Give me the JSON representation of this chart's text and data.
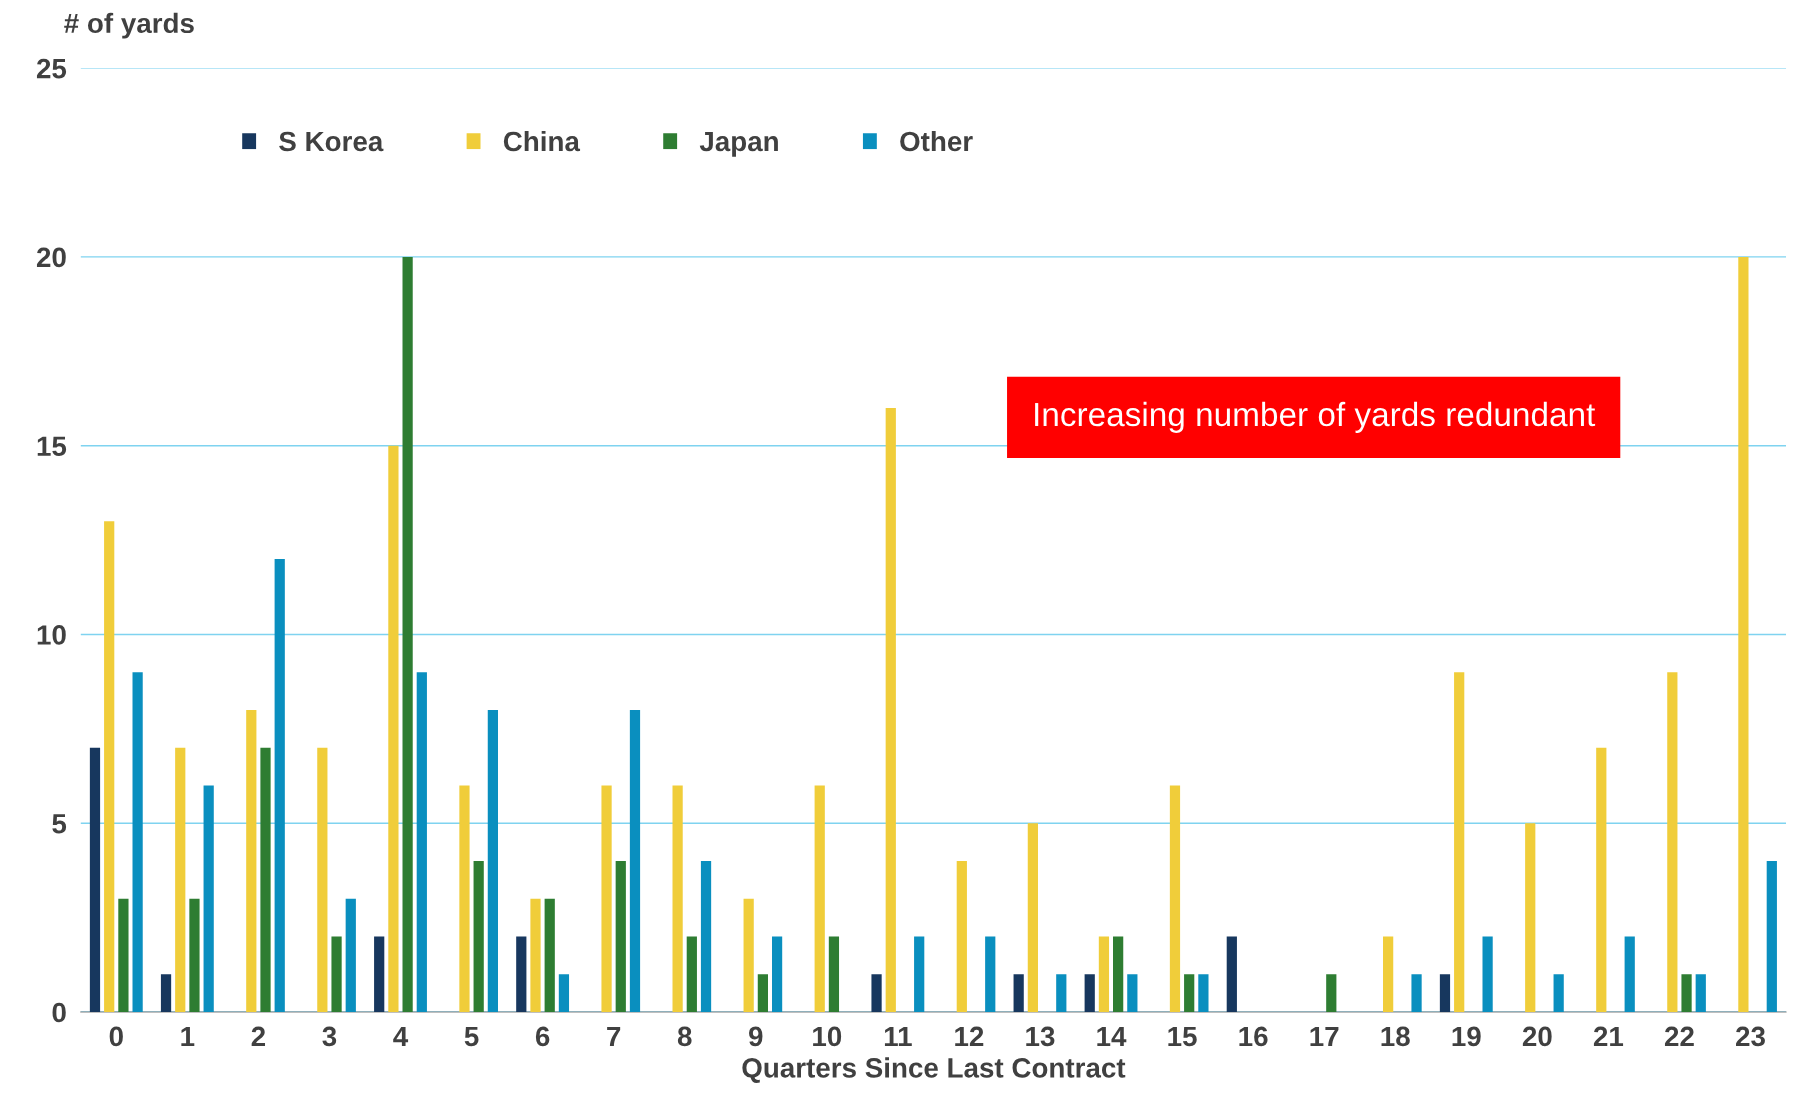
{
  "chart_data": {
    "type": "bar",
    "ylabel": "# of yards",
    "xlabel": "Quarters Since Last Contract",
    "categories": [
      "0",
      "1",
      "2",
      "3",
      "4",
      "5",
      "6",
      "7",
      "8",
      "9",
      "10",
      "11",
      "12",
      "13",
      "14",
      "15",
      "16",
      "17",
      "18",
      "19",
      "20",
      "21",
      "22",
      "23"
    ],
    "series": [
      {
        "name": "S Korea",
        "color": "#17375e",
        "values": [
          7,
          1,
          0,
          0,
          2,
          0,
          2,
          0,
          0,
          0,
          0,
          1,
          0,
          1,
          1,
          0,
          2,
          0,
          0,
          1,
          0,
          0,
          0,
          0
        ]
      },
      {
        "name": "China",
        "color": "#f0cd3a",
        "values": [
          13,
          7,
          8,
          7,
          15,
          6,
          3,
          6,
          6,
          3,
          6,
          16,
          4,
          5,
          2,
          6,
          0,
          0,
          2,
          9,
          5,
          7,
          9,
          20
        ]
      },
      {
        "name": "Japan",
        "color": "#2e7d32",
        "values": [
          3,
          3,
          7,
          2,
          20,
          4,
          3,
          4,
          2,
          1,
          2,
          0,
          0,
          0,
          2,
          1,
          0,
          1,
          0,
          0,
          0,
          0,
          1,
          0
        ]
      },
      {
        "name": "Other",
        "color": "#0a8fbf",
        "values": [
          9,
          6,
          12,
          3,
          9,
          8,
          1,
          8,
          4,
          2,
          0,
          2,
          2,
          1,
          1,
          1,
          0,
          0,
          1,
          2,
          1,
          2,
          1,
          4
        ]
      }
    ],
    "ylim": [
      0,
      25
    ],
    "yticks": [
      0,
      5,
      10,
      15,
      20,
      25
    ],
    "grid": "y",
    "legend": "top left",
    "annotations": [
      "Increasing number of yards redundant"
    ]
  }
}
